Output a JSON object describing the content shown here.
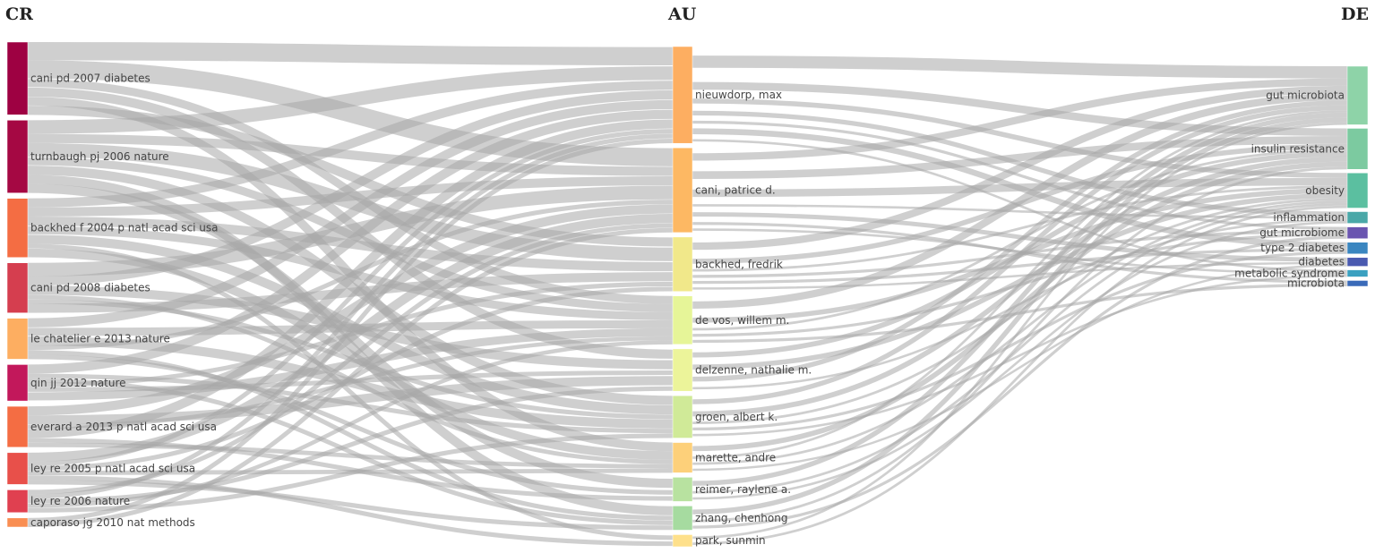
{
  "chart_data": {
    "type": "sankey",
    "columns": [
      {
        "title": "CR",
        "nodes": [
          {
            "label": "cani pd 2007 diabetes",
            "value": 16,
            "color": "#9e0142"
          },
          {
            "label": "turnbaugh pj 2006 nature",
            "value": 16,
            "color": "#a50843"
          },
          {
            "label": "backhed f 2004 p natl acad sci usa",
            "value": 13,
            "color": "#f46d43"
          },
          {
            "label": "cani pd 2008 diabetes",
            "value": 11,
            "color": "#d53e4f"
          },
          {
            "label": "le chatelier e 2013 nature",
            "value": 9,
            "color": "#fdae61"
          },
          {
            "label": "qin jj 2012 nature",
            "value": 8,
            "color": "#c2185b"
          },
          {
            "label": "everard a 2013 p natl acad sci usa",
            "value": 9,
            "color": "#f46d43"
          },
          {
            "label": "ley re 2005 p natl acad sci usa",
            "value": 7,
            "color": "#e8504a"
          },
          {
            "label": "ley re 2006 nature",
            "value": 5,
            "color": "#e04050"
          },
          {
            "label": "caporaso jg 2010 nat methods",
            "value": 2,
            "color": "#f98e52"
          }
        ]
      },
      {
        "title": "AU",
        "nodes": [
          {
            "label": "nieuwdorp, max",
            "value": 16,
            "color": "#fdae61"
          },
          {
            "label": "cani, patrice d.",
            "value": 14,
            "color": "#fdb863"
          },
          {
            "label": "backhed, fredrik",
            "value": 9,
            "color": "#f1e88a"
          },
          {
            "label": "de vos, willem m.",
            "value": 8,
            "color": "#e6f598"
          },
          {
            "label": "delzenne, nathalie m.",
            "value": 7,
            "color": "#ecf49a"
          },
          {
            "label": "groen, albert k.",
            "value": 7,
            "color": "#d0ea98"
          },
          {
            "label": "marette, andre",
            "value": 5,
            "color": "#fdd07a"
          },
          {
            "label": "reimer, raylene a.",
            "value": 4,
            "color": "#b8e2a0"
          },
          {
            "label": "zhang, chenhong",
            "value": 4,
            "color": "#a6dba0"
          },
          {
            "label": "park, sunmin",
            "value": 2,
            "color": "#fee08b"
          }
        ]
      },
      {
        "title": "DE",
        "nodes": [
          {
            "label": "gut microbiota",
            "value": 10,
            "color": "#8ed3a8"
          },
          {
            "label": "insulin resistance",
            "value": 7,
            "color": "#7ccaa0"
          },
          {
            "label": "obesity",
            "value": 6,
            "color": "#5bbfa0"
          },
          {
            "label": "inflammation",
            "value": 2,
            "color": "#4aa8a8"
          },
          {
            "label": "gut microbiome",
            "value": 2,
            "color": "#6a55b0"
          },
          {
            "label": "type 2 diabetes",
            "value": 2,
            "color": "#3a86c0"
          },
          {
            "label": "diabetes",
            "value": 1.5,
            "color": "#4a5ab0"
          },
          {
            "label": "metabolic syndrome",
            "value": 1.2,
            "color": "#3aa0c0"
          },
          {
            "label": "microbiota",
            "value": 1,
            "color": "#3a6ab8"
          }
        ]
      }
    ],
    "links_cr_au": [
      [
        0,
        0,
        4
      ],
      [
        0,
        1,
        4
      ],
      [
        0,
        3,
        2
      ],
      [
        0,
        4,
        2
      ],
      [
        0,
        6,
        2
      ],
      [
        0,
        2,
        2
      ],
      [
        1,
        0,
        3
      ],
      [
        1,
        1,
        2
      ],
      [
        1,
        2,
        3
      ],
      [
        1,
        3,
        2
      ],
      [
        1,
        5,
        2
      ],
      [
        1,
        8,
        2
      ],
      [
        1,
        7,
        2
      ],
      [
        2,
        0,
        2
      ],
      [
        2,
        1,
        2
      ],
      [
        2,
        2,
        2
      ],
      [
        2,
        3,
        2
      ],
      [
        2,
        5,
        2
      ],
      [
        2,
        9,
        1
      ],
      [
        2,
        6,
        2
      ],
      [
        3,
        1,
        3
      ],
      [
        3,
        0,
        2
      ],
      [
        3,
        4,
        2
      ],
      [
        3,
        6,
        1
      ],
      [
        3,
        5,
        1
      ],
      [
        3,
        2,
        2
      ],
      [
        4,
        0,
        2
      ],
      [
        4,
        3,
        2
      ],
      [
        4,
        5,
        2
      ],
      [
        4,
        1,
        1
      ],
      [
        4,
        8,
        1
      ],
      [
        4,
        7,
        1
      ],
      [
        5,
        0,
        2
      ],
      [
        5,
        5,
        1
      ],
      [
        5,
        8,
        1
      ],
      [
        5,
        2,
        1
      ],
      [
        5,
        4,
        1
      ],
      [
        5,
        3,
        2
      ],
      [
        6,
        1,
        2
      ],
      [
        6,
        4,
        2
      ],
      [
        6,
        3,
        1
      ],
      [
        6,
        0,
        2
      ],
      [
        6,
        7,
        1
      ],
      [
        6,
        6,
        1
      ],
      [
        7,
        1,
        2
      ],
      [
        7,
        0,
        1
      ],
      [
        7,
        2,
        1
      ],
      [
        7,
        6,
        1
      ],
      [
        7,
        9,
        1
      ],
      [
        7,
        8,
        1
      ],
      [
        8,
        1,
        1
      ],
      [
        8,
        0,
        1
      ],
      [
        8,
        4,
        1
      ],
      [
        8,
        3,
        1
      ],
      [
        8,
        5,
        1
      ],
      [
        9,
        0,
        1
      ],
      [
        9,
        1,
        1
      ]
    ],
    "links_au_de": [
      [
        0,
        0,
        5
      ],
      [
        0,
        1,
        3
      ],
      [
        0,
        2,
        2
      ],
      [
        0,
        3,
        2
      ],
      [
        0,
        4,
        1
      ],
      [
        0,
        5,
        2
      ],
      [
        0,
        7,
        1
      ],
      [
        1,
        0,
        3
      ],
      [
        1,
        1,
        3
      ],
      [
        1,
        2,
        3
      ],
      [
        1,
        3,
        1
      ],
      [
        1,
        6,
        2
      ],
      [
        1,
        8,
        1
      ],
      [
        1,
        7,
        1
      ],
      [
        2,
        0,
        3
      ],
      [
        2,
        1,
        2
      ],
      [
        2,
        2,
        1
      ],
      [
        2,
        4,
        1
      ],
      [
        2,
        5,
        1
      ],
      [
        2,
        6,
        1
      ],
      [
        3,
        0,
        3
      ],
      [
        3,
        2,
        2
      ],
      [
        3,
        1,
        1
      ],
      [
        3,
        4,
        1
      ],
      [
        3,
        8,
        1
      ],
      [
        4,
        1,
        2
      ],
      [
        4,
        2,
        2
      ],
      [
        4,
        0,
        2
      ],
      [
        4,
        3,
        1
      ],
      [
        5,
        0,
        2
      ],
      [
        5,
        1,
        2
      ],
      [
        5,
        2,
        1
      ],
      [
        5,
        5,
        1
      ],
      [
        5,
        7,
        1
      ],
      [
        6,
        1,
        2
      ],
      [
        6,
        0,
        1
      ],
      [
        6,
        2,
        1
      ],
      [
        6,
        6,
        1
      ],
      [
        7,
        0,
        2
      ],
      [
        7,
        2,
        1
      ],
      [
        7,
        3,
        1
      ],
      [
        8,
        0,
        2
      ],
      [
        8,
        1,
        1
      ],
      [
        8,
        4,
        1
      ],
      [
        9,
        0,
        1
      ],
      [
        9,
        2,
        1
      ]
    ]
  }
}
